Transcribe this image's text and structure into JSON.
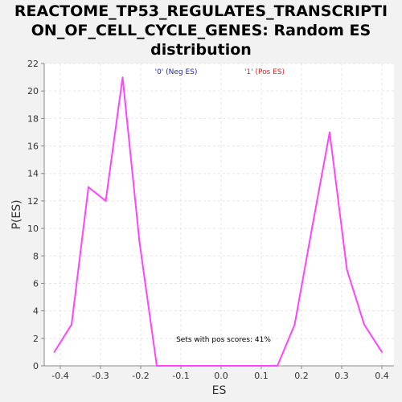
{
  "chart_data": {
    "type": "line",
    "title_lines": [
      "REACTOME_TP53_REGULATES_TRANSCRIPTI",
      "ON_OF_CELL_CYCLE_GENES: Random ES",
      "distribution"
    ],
    "xlabel": "ES",
    "ylabel": "P(ES)",
    "xlim": [
      -0.44,
      0.43
    ],
    "ylim": [
      0,
      22
    ],
    "xticks": [
      -0.4,
      -0.3,
      -0.2,
      -0.1,
      0.0,
      0.1,
      0.2,
      0.3,
      0.4
    ],
    "xtick_labels": [
      "-0.4",
      "-0.3",
      "-0.2",
      "-0.1",
      "0.0",
      "0.1",
      "0.2",
      "0.3",
      "0.4"
    ],
    "yticks": [
      0,
      2,
      4,
      6,
      8,
      10,
      12,
      14,
      16,
      18,
      20,
      22
    ],
    "ytick_labels": [
      "0",
      "2",
      "4",
      "6",
      "8",
      "10",
      "12",
      "14",
      "16",
      "18",
      "20",
      "22"
    ],
    "grid": true,
    "legend": [
      {
        "label": "'0' (Neg ES)",
        "color": "#2222cc"
      },
      {
        "label": "'1' (Pos ES)",
        "color": "#dd2222"
      }
    ],
    "legend_position": "top",
    "annotation": "Sets with pos scores: 41%",
    "series": [
      {
        "color": "#ff44ff",
        "x": [
          -0.415,
          -0.372,
          -0.33,
          -0.287,
          -0.245,
          -0.203,
          -0.16,
          -0.118,
          -0.075,
          -0.033,
          0.01,
          0.052,
          0.095,
          0.14,
          0.183,
          0.226,
          0.27,
          0.313,
          0.356,
          0.4
        ],
        "y": [
          1,
          3,
          13,
          12,
          21,
          9,
          0,
          0,
          0,
          0,
          0,
          0,
          0,
          0,
          3,
          10,
          17,
          7,
          3,
          1
        ]
      }
    ],
    "colors": {
      "background": "#f2f2f2",
      "plot_background": "#ffffff",
      "grid": "#e6e6e6",
      "axis": "#888888"
    }
  }
}
